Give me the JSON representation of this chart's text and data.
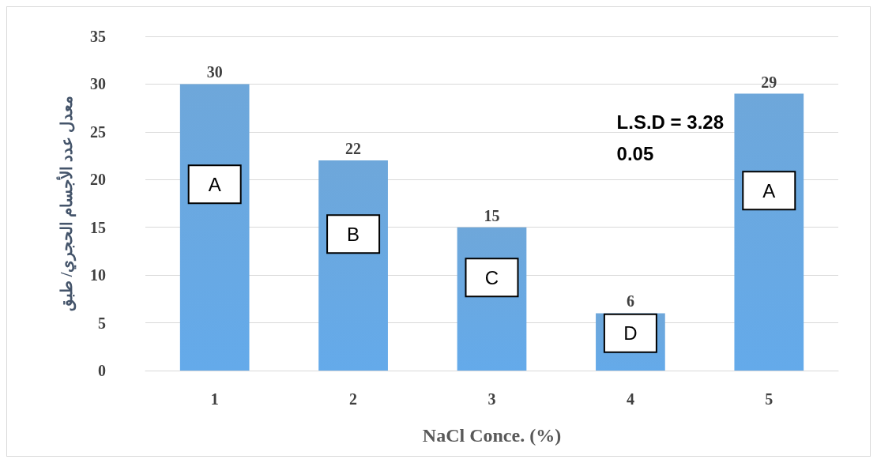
{
  "chart_data": {
    "type": "bar",
    "xlabel": "NaCl Conce. (%)",
    "ylabel": "معدل عدد الأجسام الحجري/ طبق",
    "categories": [
      "1",
      "2",
      "3",
      "4",
      "5"
    ],
    "values": [
      30,
      22,
      15,
      6,
      29
    ],
    "color": "#5b9bd5",
    "ylim": [
      0,
      35
    ],
    "yticks": [
      0,
      5,
      10,
      15,
      20,
      25,
      30,
      35
    ],
    "grid": "y",
    "data_labels": true,
    "annotations": [
      "A",
      "B",
      "C",
      "D",
      "A",
      "L.S.D = 3.28\n0.05"
    ]
  }
}
